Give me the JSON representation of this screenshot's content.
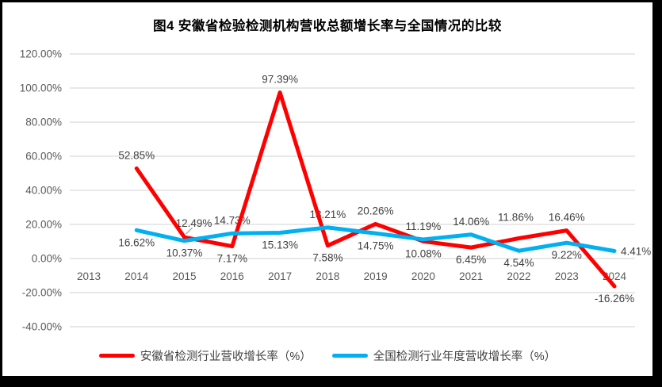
{
  "chart_data": {
    "type": "line",
    "title": "图4  安徽省检验检测机构营收总额增长率与全国情况的比较",
    "categories": [
      "2013",
      "2014",
      "2015",
      "2016",
      "2017",
      "2018",
      "2019",
      "2020",
      "2021",
      "2022",
      "2023",
      "2024"
    ],
    "series": [
      {
        "name": "安徽省检测行业营收增长率（%）",
        "color": "#FF0000",
        "values": [
          null,
          52.85,
          12.49,
          7.17,
          97.39,
          7.58,
          20.26,
          10.08,
          6.45,
          11.86,
          16.46,
          -16.26
        ],
        "labels": [
          null,
          "52.85%",
          "12.49%",
          "7.17%",
          "97.39%",
          "7.58%",
          "20.26%",
          "10.08%",
          "6.45%",
          "11.86%",
          "16.46%",
          "-16.26%"
        ],
        "label_sides": [
          null,
          "above",
          "callout",
          "below",
          "above",
          "below",
          "above",
          "below",
          "below",
          "above-far",
          "above",
          "below"
        ]
      },
      {
        "name": "全国检测行业年度营收增长率（%）",
        "color": "#00B0F0",
        "values": [
          null,
          16.62,
          10.37,
          14.73,
          15.13,
          18.21,
          14.75,
          11.19,
          14.06,
          4.54,
          9.22,
          4.41
        ],
        "labels": [
          null,
          "16.62%",
          "10.37%",
          "14.73%",
          "15.13%",
          "18.21%",
          "14.75%",
          "11.19%",
          "14.06%",
          "4.54%",
          "9.22%",
          "4.41%"
        ],
        "label_sides": [
          null,
          "below",
          "below",
          "above",
          "below",
          "above",
          "below",
          "above",
          "above",
          "below",
          "below",
          "right"
        ]
      }
    ],
    "ylim": [
      -40,
      120
    ],
    "ytick_step": 20,
    "ytick_labels": [
      "120.00%",
      "100.00%",
      "80.00%",
      "60.00%",
      "40.00%",
      "20.00%",
      "0.00%",
      "-20.00%",
      "-40.00%"
    ],
    "xlabel": "",
    "ylabel": "",
    "grid": true,
    "legend_position": "bottom"
  },
  "colors": {
    "series_red": "#FF0000",
    "series_blue": "#00B0F0",
    "gridline": "#D9D9D9",
    "axis_text": "#595959",
    "data_label": "#404040",
    "leader_line": "#A6A6A6",
    "frame_border": "#000000",
    "background": "#FFFFFF"
  }
}
